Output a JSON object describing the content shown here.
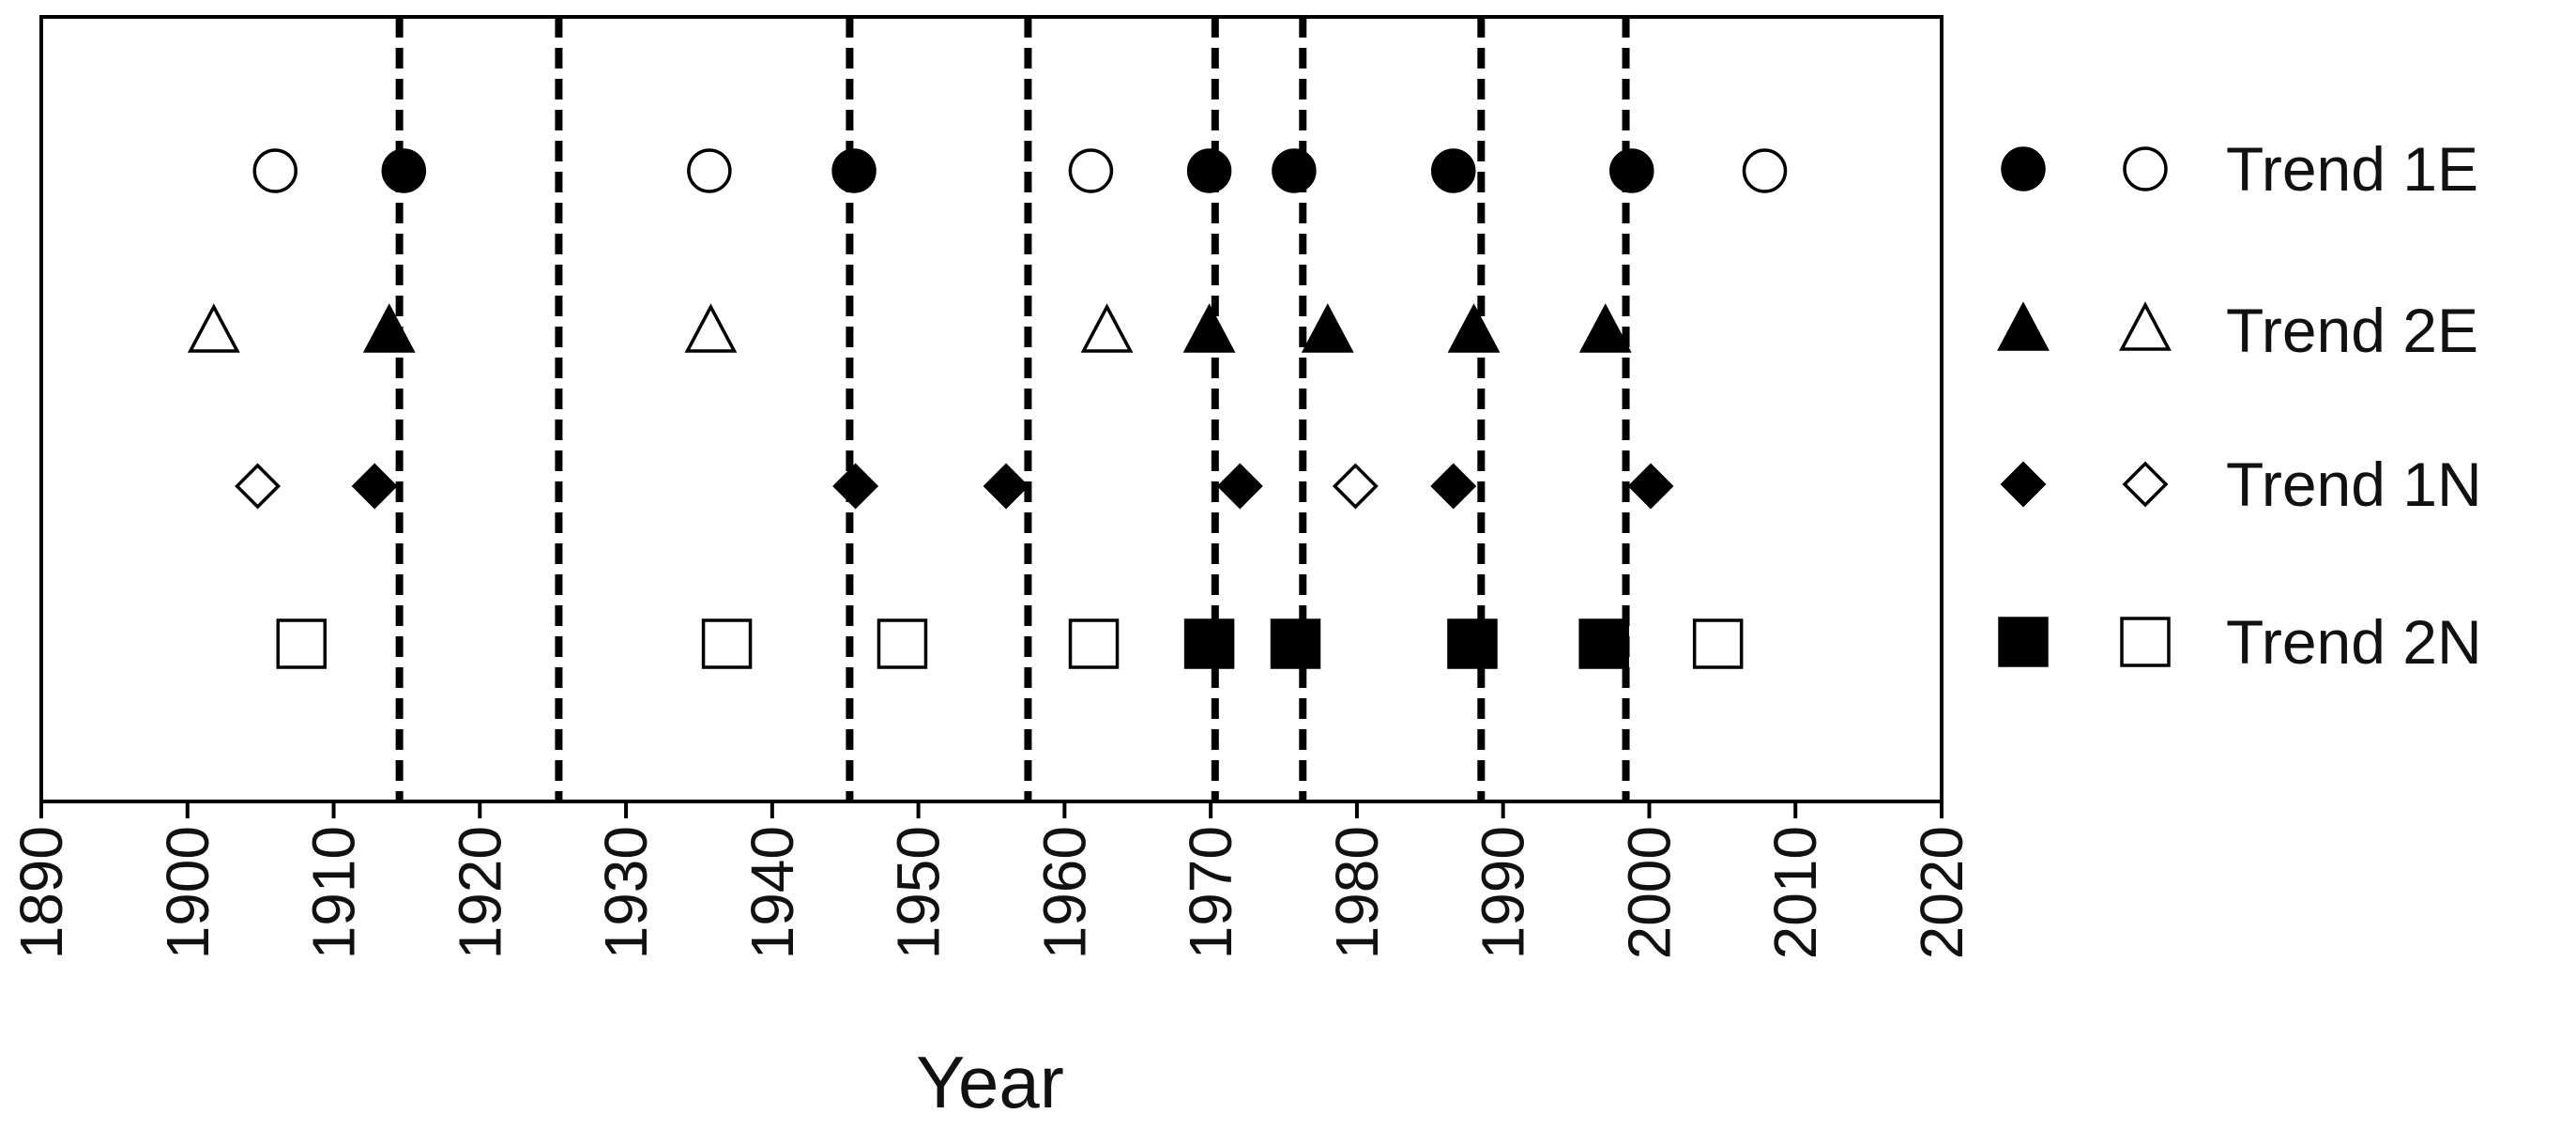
{
  "chart_data": {
    "type": "scatter",
    "x_label": "Year",
    "xlim": [
      1890,
      2020
    ],
    "xticks": [
      1890,
      1900,
      1910,
      1920,
      1930,
      1940,
      1950,
      1960,
      1970,
      1980,
      1990,
      2000,
      2010,
      2020
    ],
    "vlines": [
      1914.5,
      1925.4,
      1945.3,
      1957.5,
      1970.3,
      1976.3,
      1988.5,
      1998.4
    ],
    "color": "#000000",
    "series": [
      {
        "name": "Trend 1E",
        "marker": "circle",
        "filled": [
          1914.8,
          1945.6,
          1969.9,
          1975.7,
          1986.6,
          1998.8
        ],
        "open": [
          1906,
          1935.7,
          1961.8,
          2007.9
        ]
      },
      {
        "name": "Trend 2E",
        "marker": "triangle",
        "filled": [
          1913.8,
          1969.9,
          1978,
          1988,
          1997
        ],
        "open": [
          1901.8,
          1935.8,
          1962.9
        ]
      },
      {
        "name": "Trend 1N",
        "marker": "diamond",
        "filled": [
          1912.8,
          1945.7,
          1956,
          1972,
          1986.6,
          2000.1
        ],
        "open": [
          1904.8,
          1979.9
        ]
      },
      {
        "name": "Trend 2N",
        "marker": "square",
        "filled": [
          1969.9,
          1975.8,
          1987.9,
          1996.9
        ],
        "open": [
          1907.8,
          1936.9,
          1948.9,
          1962,
          2004.7
        ]
      }
    ]
  }
}
